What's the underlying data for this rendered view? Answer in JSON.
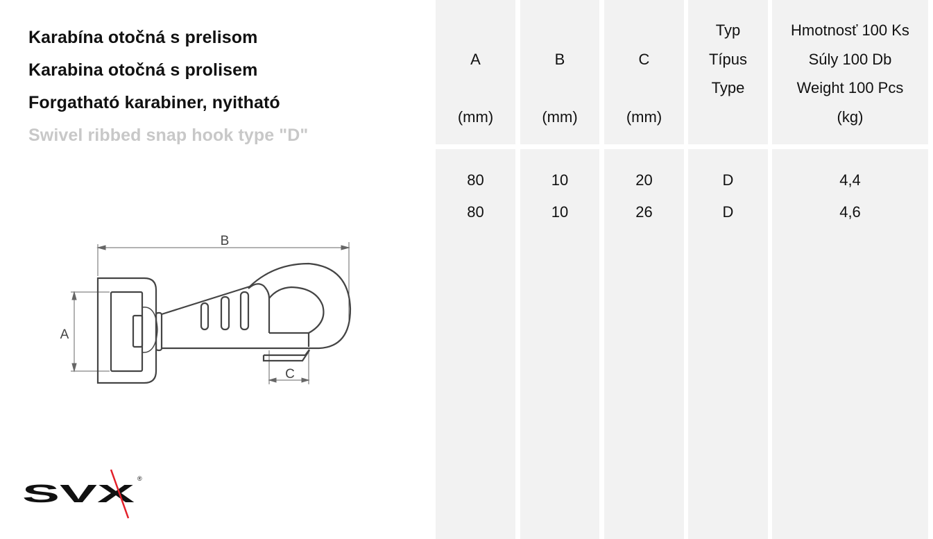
{
  "titles": {
    "sk": "Karabína otočná s prelisom",
    "cz": "Karabina otočná s prolisem",
    "hu": "Forgatható karabiner, nyitható",
    "en": "Swivel ribbed snap hook type \"D\""
  },
  "drawing": {
    "label_a": "A",
    "label_b": "B",
    "label_c": "C"
  },
  "table": {
    "headers": [
      {
        "lines": [
          "A",
          "(mm)"
        ]
      },
      {
        "lines": [
          "B",
          "(mm)"
        ]
      },
      {
        "lines": [
          "C",
          "(mm)"
        ]
      },
      {
        "lines": [
          "Typ",
          "Típus",
          "Type"
        ]
      },
      {
        "lines": [
          "Hmotnosť 100 Ks",
          "Súly 100 Db",
          "Weight 100 Pcs",
          "(kg)"
        ]
      }
    ],
    "rows": [
      [
        "80",
        "10",
        "20",
        "D",
        "4,4"
      ],
      [
        "80",
        "10",
        "26",
        "D",
        "4,6"
      ]
    ]
  },
  "logo": {
    "text": "SVX",
    "mark": "®",
    "accent": "#e3202a"
  },
  "colors": {
    "cell_bg": "#f2f2f2",
    "subtitle_gray": "#c8c8c8"
  }
}
